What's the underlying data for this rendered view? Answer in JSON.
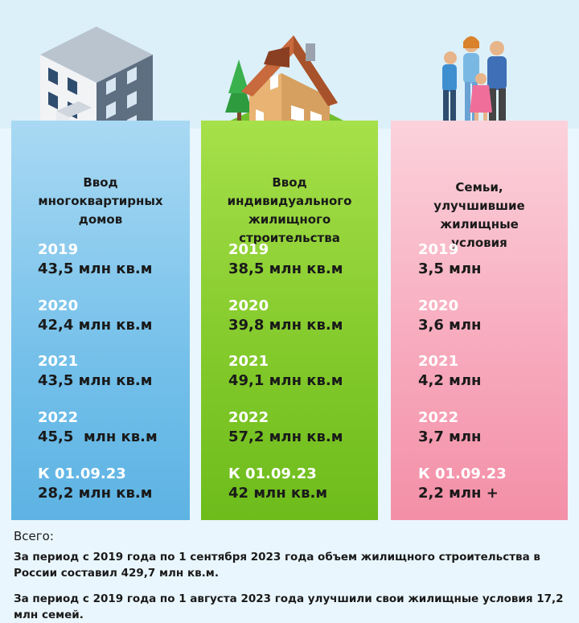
{
  "columns": [
    {
      "title": "Ввод многоквартирных домов",
      "icon": "apartment-building-icon",
      "color": "#74c0ea",
      "entries": [
        {
          "year": "2019",
          "value": "43,5 млн кв.м"
        },
        {
          "year": "2020",
          "value": "42,4 млн кв.м"
        },
        {
          "year": "2021",
          "value": "43,5 млн кв.м"
        },
        {
          "year": "2022",
          "value": "45,5  млн кв.м"
        },
        {
          "year": "К 01.09.23",
          "value": "28,2 млн кв.м"
        }
      ]
    },
    {
      "title": "Ввод индивидуального жилищного строительства",
      "icon": "house-icon",
      "color": "#82c92a",
      "entries": [
        {
          "year": "2019",
          "value": "38,5 млн кв.м"
        },
        {
          "year": "2020",
          "value": "39,8 млн кв.м"
        },
        {
          "year": "2021",
          "value": "49,1 млн кв.м"
        },
        {
          "year": "2022",
          "value": "57,2 млн кв.м"
        },
        {
          "year": "К 01.09.23",
          "value": "42 млн кв.м"
        }
      ]
    },
    {
      "title": "Семьи, улучшившие жилищные условия",
      "icon": "family-icon",
      "color": "#f7a8bb",
      "entries": [
        {
          "year": "2019",
          "value": "3,5 млн"
        },
        {
          "year": "2020",
          "value": "3,6 млн"
        },
        {
          "year": "2021",
          "value": "4,2 млн"
        },
        {
          "year": "2022",
          "value": "3,7 млн"
        },
        {
          "year": "К 01.09.23",
          "value": "2,2 млн +"
        }
      ]
    }
  ],
  "footer": {
    "label": "Всего:",
    "line1": "За период с 2019 года по 1 сентября 2023 года объем жилищного строительства в России составил 429,7 млн кв.м.",
    "line2": "За период с 2019 года по 1 августа 2023 года улучшили свои жилищные условия 17,2 млн семей."
  }
}
